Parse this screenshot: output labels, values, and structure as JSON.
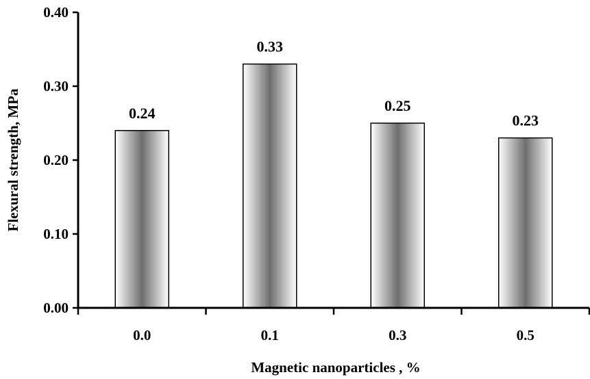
{
  "chart_data": {
    "type": "bar",
    "categories": [
      "0.0",
      "0.1",
      "0.3",
      "0.5"
    ],
    "values": [
      0.24,
      0.33,
      0.25,
      0.23
    ],
    "data_labels": [
      "0.24",
      "0.33",
      "0.25",
      "0.23"
    ],
    "xlabel": "Magnetic nanoparticles , %",
    "ylabel": "Flexural strength, MPa",
    "ylim": [
      0,
      0.4
    ],
    "yticks": [
      "0.00",
      "0.10",
      "0.20",
      "0.30",
      "0.40"
    ],
    "grid": false,
    "legend": "none",
    "bar_colors": {
      "edge": "#ffffff",
      "center": "#6e6e6e",
      "outline": "#000000"
    }
  }
}
